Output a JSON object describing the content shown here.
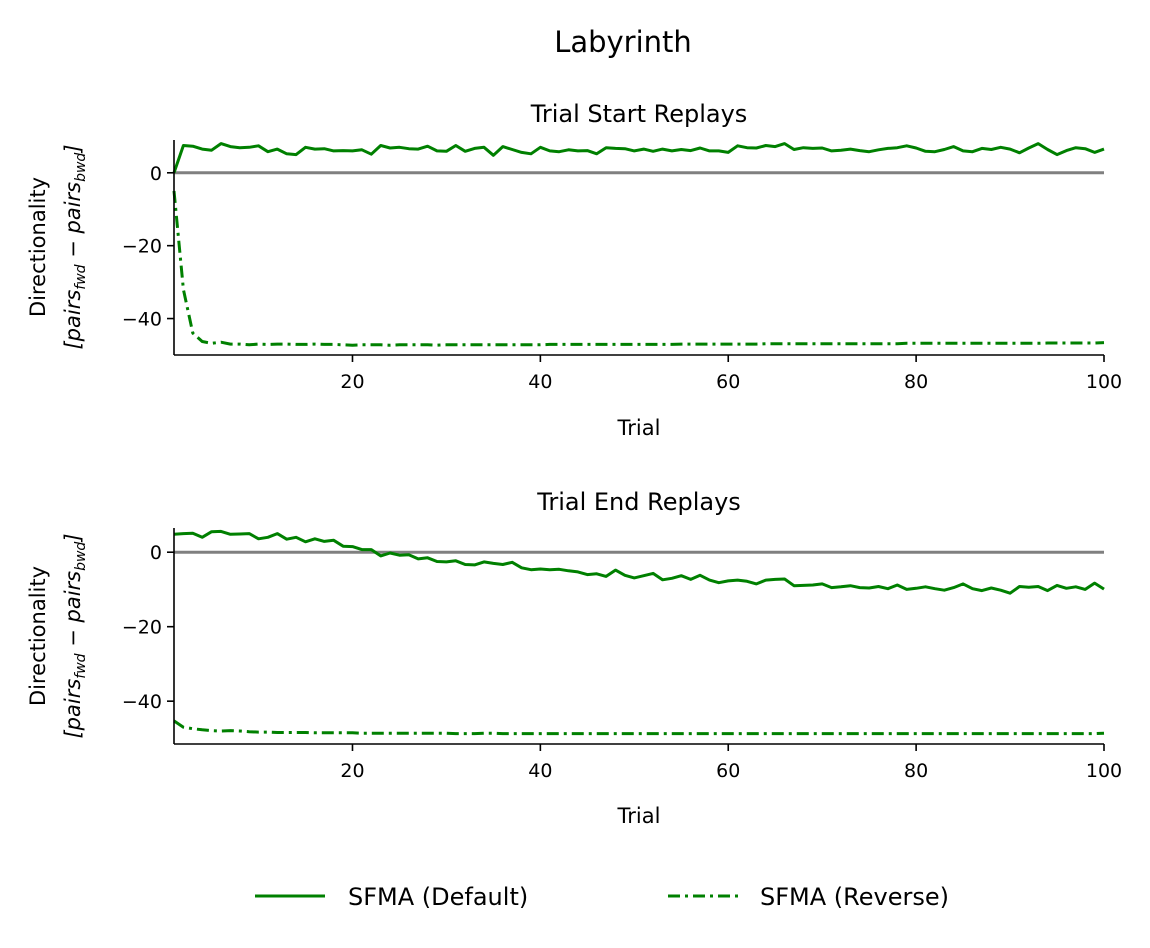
{
  "figure": {
    "title": "Labyrinth"
  },
  "legend": {
    "placement": "bottom-center",
    "items": [
      {
        "label": "SFMA (Default)",
        "style": "solid",
        "color": "#008000"
      },
      {
        "label": "SFMA (Reverse)",
        "style": "dashdot",
        "color": "#008000"
      }
    ]
  },
  "colors": {
    "series": "#008000",
    "zero_line": "#808080",
    "axis": "#000000"
  },
  "chart_data": [
    {
      "type": "line",
      "title": "Trial Start Replays",
      "xlabel": "Trial",
      "ylabel_line1": "Directionality",
      "ylabel_line2": "[pairs_fwd − pairs_bwd]",
      "xlim": [
        1,
        100
      ],
      "ylim": [
        -50,
        9
      ],
      "xticks": [
        20,
        40,
        60,
        80,
        100
      ],
      "yticks": [
        0,
        -20,
        -40
      ],
      "reference_line": 0,
      "x": [
        1,
        2,
        3,
        4,
        5,
        6,
        7,
        8,
        9,
        10,
        11,
        12,
        13,
        14,
        15,
        16,
        17,
        18,
        19,
        20,
        21,
        22,
        23,
        24,
        25,
        26,
        27,
        28,
        29,
        30,
        31,
        32,
        33,
        34,
        35,
        36,
        37,
        38,
        39,
        40,
        41,
        42,
        43,
        44,
        45,
        46,
        47,
        48,
        49,
        50,
        51,
        52,
        53,
        54,
        55,
        56,
        57,
        58,
        59,
        60,
        61,
        62,
        63,
        64,
        65,
        66,
        67,
        68,
        69,
        70,
        71,
        72,
        73,
        74,
        75,
        76,
        77,
        78,
        79,
        80,
        81,
        82,
        83,
        84,
        85,
        86,
        87,
        88,
        89,
        90,
        91,
        92,
        93,
        94,
        95,
        96,
        97,
        98,
        99,
        100
      ],
      "series": [
        {
          "name": "SFMA (Default)",
          "style": "solid",
          "values": [
            0,
            7.5,
            7.3,
            6.5,
            6.2,
            8,
            7.2,
            6.9,
            7,
            7.4,
            5.8,
            6.5,
            5.2,
            5,
            7,
            6.5,
            6.6,
            6,
            6.1,
            6,
            6.3,
            5.1,
            7.5,
            6.8,
            7,
            6.6,
            6.5,
            7.3,
            6,
            5.9,
            7.5,
            5.9,
            6.7,
            7,
            4.8,
            7.2,
            6.4,
            5.6,
            5.2,
            7,
            6,
            5.8,
            6.3,
            6,
            6.1,
            5.2,
            6.9,
            6.7,
            6.6,
            6,
            6.5,
            5.9,
            6.5,
            6,
            6.4,
            6.1,
            6.8,
            6,
            6,
            5.6,
            7.4,
            6.9,
            6.8,
            7.5,
            7.2,
            8,
            6.4,
            6.9,
            6.7,
            6.8,
            6,
            6.2,
            6.5,
            6.1,
            5.8,
            6.3,
            6.7,
            6.9,
            7.4,
            6.8,
            5.9,
            5.8,
            6.4,
            7.2,
            6,
            5.8,
            6.7,
            6.4,
            7,
            6.5,
            5.5,
            6.8,
            8,
            6.4,
            5,
            6.1,
            6.9,
            6.6,
            5.6,
            6.5
          ]
        },
        {
          "name": "SFMA (Reverse)",
          "style": "dashdot",
          "values": [
            -5,
            -32,
            -44,
            -46.3,
            -46.8,
            -46.5,
            -47,
            -47,
            -47.2,
            -47,
            -47.1,
            -47,
            -47,
            -47.1,
            -47.1,
            -47,
            -47.1,
            -47.1,
            -47.2,
            -47.3,
            -47.2,
            -47.2,
            -47.2,
            -47.3,
            -47.2,
            -47.2,
            -47.2,
            -47.2,
            -47.3,
            -47.2,
            -47.2,
            -47.2,
            -47.2,
            -47.2,
            -47.2,
            -47.2,
            -47.2,
            -47.2,
            -47.2,
            -47.2,
            -47.1,
            -47.1,
            -47.1,
            -47.1,
            -47.1,
            -47.1,
            -47.1,
            -47.1,
            -47.1,
            -47.1,
            -47.1,
            -47.1,
            -47.1,
            -47.1,
            -47,
            -47,
            -47,
            -47,
            -47,
            -47,
            -47,
            -47,
            -47,
            -46.9,
            -46.9,
            -46.9,
            -46.9,
            -46.9,
            -46.9,
            -46.9,
            -46.9,
            -46.9,
            -46.9,
            -46.9,
            -46.9,
            -46.9,
            -46.9,
            -46.9,
            -46.8,
            -46.8,
            -46.8,
            -46.8,
            -46.8,
            -46.8,
            -46.8,
            -46.8,
            -46.8,
            -46.8,
            -46.8,
            -46.8,
            -46.8,
            -46.8,
            -46.8,
            -46.7,
            -46.7,
            -46.7,
            -46.7,
            -46.7,
            -46.7,
            -46.6
          ]
        }
      ]
    },
    {
      "type": "line",
      "title": "Trial End Replays",
      "xlabel": "Trial",
      "ylabel_line1": "Directionality",
      "ylabel_line2": "[pairs_fwd − pairs_bwd]",
      "xlim": [
        1,
        100
      ],
      "ylim": [
        -51.5,
        6.5
      ],
      "xticks": [
        20,
        40,
        60,
        80,
        100
      ],
      "yticks": [
        0,
        -20,
        -40
      ],
      "reference_line": 0,
      "x": [
        1,
        2,
        3,
        4,
        5,
        6,
        7,
        8,
        9,
        10,
        11,
        12,
        13,
        14,
        15,
        16,
        17,
        18,
        19,
        20,
        21,
        22,
        23,
        24,
        25,
        26,
        27,
        28,
        29,
        30,
        31,
        32,
        33,
        34,
        35,
        36,
        37,
        38,
        39,
        40,
        41,
        42,
        43,
        44,
        45,
        46,
        47,
        48,
        49,
        50,
        51,
        52,
        53,
        54,
        55,
        56,
        57,
        58,
        59,
        60,
        61,
        62,
        63,
        64,
        65,
        66,
        67,
        68,
        69,
        70,
        71,
        72,
        73,
        74,
        75,
        76,
        77,
        78,
        79,
        80,
        81,
        82,
        83,
        84,
        85,
        86,
        87,
        88,
        89,
        90,
        91,
        92,
        93,
        94,
        95,
        96,
        97,
        98,
        99,
        100
      ],
      "series": [
        {
          "name": "SFMA (Default)",
          "style": "solid",
          "values": [
            4.8,
            5,
            5.1,
            4,
            5.5,
            5.6,
            4.8,
            4.9,
            5,
            3.6,
            4,
            5,
            3.5,
            4,
            2.8,
            3.6,
            2.9,
            3.2,
            1.6,
            1.5,
            0.7,
            0.7,
            -1,
            -0.2,
            -0.8,
            -0.7,
            -1.8,
            -1.5,
            -2.5,
            -2.6,
            -2.3,
            -3.3,
            -3.4,
            -2.6,
            -3,
            -3.3,
            -2.7,
            -4.2,
            -4.7,
            -4.5,
            -4.7,
            -4.6,
            -5,
            -5.3,
            -6,
            -5.8,
            -6.5,
            -4.8,
            -6.2,
            -6.9,
            -6.3,
            -5.7,
            -7.4,
            -7,
            -6.3,
            -7.3,
            -6.2,
            -7.5,
            -8.2,
            -7.7,
            -7.5,
            -7.8,
            -8.5,
            -7.5,
            -7.3,
            -7.2,
            -9,
            -8.9,
            -8.8,
            -8.5,
            -9.5,
            -9.3,
            -9,
            -9.5,
            -9.6,
            -9.2,
            -9.8,
            -8.8,
            -10,
            -9.7,
            -9.3,
            -9.8,
            -10.2,
            -9.5,
            -8.5,
            -9.8,
            -10.3,
            -9.6,
            -10.2,
            -11,
            -9.2,
            -9.4,
            -9.2,
            -10.3,
            -8.9,
            -9.7,
            -9.3,
            -10,
            -8.3,
            -9.9
          ]
        },
        {
          "name": "SFMA (Reverse)",
          "style": "dashdot",
          "values": [
            -45.3,
            -47,
            -47.4,
            -47.7,
            -47.9,
            -48,
            -47.9,
            -48,
            -48.2,
            -48.3,
            -48.3,
            -48.4,
            -48.4,
            -48.4,
            -48.4,
            -48.5,
            -48.5,
            -48.5,
            -48.5,
            -48.5,
            -48.6,
            -48.6,
            -48.6,
            -48.6,
            -48.6,
            -48.6,
            -48.6,
            -48.6,
            -48.6,
            -48.6,
            -48.7,
            -48.7,
            -48.7,
            -48.6,
            -48.6,
            -48.7,
            -48.7,
            -48.7,
            -48.7,
            -48.7,
            -48.7,
            -48.7,
            -48.7,
            -48.7,
            -48.7,
            -48.7,
            -48.7,
            -48.7,
            -48.7,
            -48.7,
            -48.7,
            -48.7,
            -48.7,
            -48.7,
            -48.7,
            -48.7,
            -48.7,
            -48.7,
            -48.7,
            -48.7,
            -48.7,
            -48.7,
            -48.7,
            -48.7,
            -48.7,
            -48.7,
            -48.7,
            -48.7,
            -48.7,
            -48.7,
            -48.7,
            -48.7,
            -48.7,
            -48.7,
            -48.7,
            -48.7,
            -48.7,
            -48.7,
            -48.7,
            -48.7,
            -48.7,
            -48.7,
            -48.7,
            -48.7,
            -48.7,
            -48.7,
            -48.7,
            -48.7,
            -48.7,
            -48.7,
            -48.7,
            -48.7,
            -48.7,
            -48.7,
            -48.7,
            -48.7,
            -48.7,
            -48.7,
            -48.7,
            -48.6
          ]
        }
      ]
    }
  ]
}
